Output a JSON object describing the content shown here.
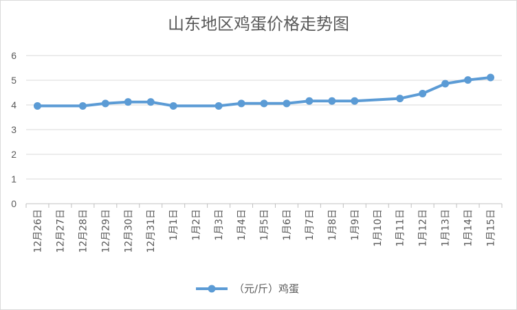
{
  "chart_data": {
    "type": "line",
    "title": "山东地区鸡蛋价格走势图",
    "xlabel": "",
    "ylabel": "",
    "ylim": [
      0,
      6
    ],
    "yticks": [
      "0",
      "1",
      "2",
      "3",
      "4",
      "5",
      "6"
    ],
    "categories": [
      "12月26日",
      "12月27日",
      "12月28日",
      "12月29日",
      "12月30日",
      "12月31日",
      "1月1日",
      "1月2日",
      "1月3日",
      "1月4日",
      "1月5日",
      "1月6日",
      "1月7日",
      "1月8日",
      "1月9日",
      "1月10日",
      "1月11日",
      "1月12日",
      "1月13日",
      "1月14日",
      "1月15日"
    ],
    "series": [
      {
        "name": "（元/斤）鸡蛋",
        "color": "#5b9bd5",
        "values": [
          3.96,
          null,
          3.96,
          4.06,
          4.12,
          4.12,
          3.96,
          null,
          3.96,
          4.06,
          4.06,
          4.06,
          4.16,
          4.16,
          4.16,
          null,
          4.26,
          4.46,
          4.86,
          5.01,
          5.11
        ]
      }
    ],
    "grid": true,
    "legend": "bottom"
  }
}
